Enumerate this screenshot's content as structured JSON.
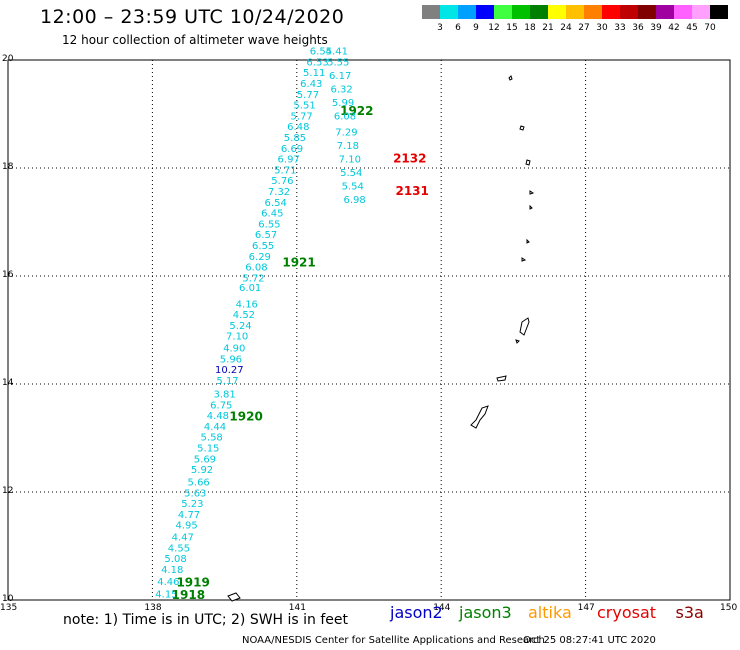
{
  "header": {
    "title": "12:00 – 23:59 UTC 10/24/2020",
    "subtitle": "12 hour collection of altimeter wave heights"
  },
  "scale": {
    "unit": "(ft)",
    "colors": [
      "#808080",
      "#00e5e5",
      "#00a0ff",
      "#0000ff",
      "#40ff40",
      "#00c000",
      "#008000",
      "#ffff00",
      "#ffc000",
      "#ff8000",
      "#ff0000",
      "#c00000",
      "#800000",
      "#a000a0",
      "#ff60ff",
      "#ffa0ff",
      "#000000"
    ],
    "labels": [
      "3",
      "6",
      "9",
      "12",
      "15",
      "18",
      "21",
      "24",
      "27",
      "30",
      "33",
      "36",
      "39",
      "42",
      "45",
      "70"
    ]
  },
  "axes": {
    "lat_ticks": [
      "20",
      "18",
      "16",
      "14",
      "12",
      "10"
    ],
    "lon_ticks": [
      "135",
      "138",
      "141",
      "144",
      "147",
      "150"
    ]
  },
  "tracks": [
    {
      "satellite": "jason3",
      "passes": [
        {
          "label": "1918",
          "lat_lon": [
            10.02,
            138.4
          ]
        },
        {
          "label": "1919",
          "lat_lon": [
            10.25,
            138.5
          ]
        },
        {
          "label": "1920",
          "lat_lon": [
            13.32,
            139.6
          ]
        },
        {
          "label": "1921",
          "lat_lon": [
            16.18,
            140.7
          ]
        },
        {
          "label": "1922",
          "lat_lon": [
            18.98,
            141.9
          ]
        }
      ],
      "readings": [
        {
          "lat": 10.05,
          "lon": 138.06,
          "ft": "4.15",
          "color": "#00c8dc"
        },
        {
          "lat": 10.28,
          "lon": 138.1,
          "ft": "4.46",
          "color": "#00c8dc"
        },
        {
          "lat": 10.5,
          "lon": 138.18,
          "ft": "4.18",
          "color": "#00c8dc"
        },
        {
          "lat": 10.7,
          "lon": 138.25,
          "ft": "5.08",
          "color": "#00c8dc"
        },
        {
          "lat": 10.9,
          "lon": 138.32,
          "ft": "4.55",
          "color": "#00c8dc"
        },
        {
          "lat": 11.1,
          "lon": 138.4,
          "ft": "4.47",
          "color": "#00c8dc"
        },
        {
          "lat": 11.32,
          "lon": 138.48,
          "ft": "4.95",
          "color": "#00c8dc"
        },
        {
          "lat": 11.52,
          "lon": 138.53,
          "ft": "4.77",
          "color": "#00c8dc"
        },
        {
          "lat": 11.72,
          "lon": 138.6,
          "ft": "5.23",
          "color": "#00c8dc"
        },
        {
          "lat": 11.92,
          "lon": 138.66,
          "ft": "5.63",
          "color": "#00c8dc"
        },
        {
          "lat": 12.12,
          "lon": 138.73,
          "ft": "5.66",
          "color": "#00c8dc"
        },
        {
          "lat": 12.35,
          "lon": 138.8,
          "ft": "5.92",
          "color": "#00c8dc"
        },
        {
          "lat": 12.55,
          "lon": 138.86,
          "ft": "5.69",
          "color": "#00c8dc"
        },
        {
          "lat": 12.75,
          "lon": 138.93,
          "ft": "5.15",
          "color": "#00c8dc"
        },
        {
          "lat": 12.95,
          "lon": 139.0,
          "ft": "5.58",
          "color": "#00c8dc"
        },
        {
          "lat": 13.15,
          "lon": 139.07,
          "ft": "4.44",
          "color": "#00c8dc"
        },
        {
          "lat": 13.35,
          "lon": 139.13,
          "ft": "4.48",
          "color": "#00c8dc"
        },
        {
          "lat": 13.55,
          "lon": 139.2,
          "ft": "6.75",
          "color": "#00c8dc"
        },
        {
          "lat": 13.75,
          "lon": 139.27,
          "ft": "3.81",
          "color": "#00c8dc"
        },
        {
          "lat": 14.0,
          "lon": 139.33,
          "ft": "5.17",
          "color": "#00c8dc"
        },
        {
          "lat": 14.2,
          "lon": 139.3,
          "ft": "10.27",
          "color": "#0000b4"
        },
        {
          "lat": 14.4,
          "lon": 139.4,
          "ft": "5.96",
          "color": "#00c8dc"
        },
        {
          "lat": 14.6,
          "lon": 139.47,
          "ft": "4.90",
          "color": "#00c8dc"
        },
        {
          "lat": 14.82,
          "lon": 139.53,
          "ft": "7.10",
          "color": "#00c8dc"
        },
        {
          "lat": 15.02,
          "lon": 139.6,
          "ft": "5.24",
          "color": "#00c8dc"
        },
        {
          "lat": 15.22,
          "lon": 139.67,
          "ft": "4.52",
          "color": "#00c8dc"
        },
        {
          "lat": 15.42,
          "lon": 139.73,
          "ft": "4.16",
          "color": "#00c8dc"
        },
        {
          "lat": 15.72,
          "lon": 139.8,
          "ft": "6.01",
          "color": "#00c8dc"
        },
        {
          "lat": 15.9,
          "lon": 139.87,
          "ft": "5.72",
          "color": "#00c8dc"
        },
        {
          "lat": 16.1,
          "lon": 139.93,
          "ft": "6.08",
          "color": "#00c8dc"
        },
        {
          "lat": 16.3,
          "lon": 140.0,
          "ft": "6.29",
          "color": "#00c8dc"
        },
        {
          "lat": 16.5,
          "lon": 140.07,
          "ft": "6.55",
          "color": "#00c8dc"
        },
        {
          "lat": 16.7,
          "lon": 140.13,
          "ft": "6.57",
          "color": "#00c8dc"
        },
        {
          "lat": 16.9,
          "lon": 140.2,
          "ft": "6.55",
          "color": "#00c8dc"
        },
        {
          "lat": 17.1,
          "lon": 140.26,
          "ft": "6.45",
          "color": "#00c8dc"
        },
        {
          "lat": 17.3,
          "lon": 140.33,
          "ft": "6.54",
          "color": "#00c8dc"
        },
        {
          "lat": 17.5,
          "lon": 140.4,
          "ft": "7.32",
          "color": "#00c8dc"
        },
        {
          "lat": 17.7,
          "lon": 140.47,
          "ft": "5.76",
          "color": "#00c8dc"
        },
        {
          "lat": 17.9,
          "lon": 140.53,
          "ft": "5.71",
          "color": "#00c8dc"
        },
        {
          "lat": 18.1,
          "lon": 140.6,
          "ft": "6.97",
          "color": "#00c8dc"
        },
        {
          "lat": 18.3,
          "lon": 140.67,
          "ft": "6.69",
          "color": "#00c8dc"
        },
        {
          "lat": 18.5,
          "lon": 140.73,
          "ft": "5.85",
          "color": "#00c8dc"
        },
        {
          "lat": 18.7,
          "lon": 140.8,
          "ft": "6.48",
          "color": "#00c8dc"
        },
        {
          "lat": 18.9,
          "lon": 140.87,
          "ft": "5.77",
          "color": "#00c8dc"
        },
        {
          "lat": 19.1,
          "lon": 140.93,
          "ft": "5.51",
          "color": "#00c8dc"
        },
        {
          "lat": 19.3,
          "lon": 141.0,
          "ft": "5.77",
          "color": "#00c8dc"
        },
        {
          "lat": 19.5,
          "lon": 141.07,
          "ft": "6.43",
          "color": "#00c8dc"
        },
        {
          "lat": 19.7,
          "lon": 141.13,
          "ft": "5.11",
          "color": "#00c8dc"
        },
        {
          "lat": 19.9,
          "lon": 141.2,
          "ft": "6.53",
          "color": "#00c8dc"
        },
        {
          "lat": 20.1,
          "lon": 141.27,
          "ft": "6.54",
          "color": "#00c8dc"
        }
      ]
    },
    {
      "satellite": "cryosat",
      "passes": [
        {
          "label": "2131",
          "lat_lon": [
            17.5,
            143.05
          ]
        },
        {
          "label": "2132",
          "lat_lon": [
            18.1,
            143.0
          ]
        }
      ],
      "readings": [
        {
          "lat": 20.1,
          "lon": 141.6,
          "ft": "5.41",
          "color": "#00c8dc"
        },
        {
          "lat": 19.9,
          "lon": 141.63,
          "ft": "5.55",
          "color": "#00c8dc"
        },
        {
          "lat": 19.65,
          "lon": 141.67,
          "ft": "6.17",
          "color": "#00c8dc"
        },
        {
          "lat": 19.4,
          "lon": 141.7,
          "ft": "6.32",
          "color": "#00c8dc"
        },
        {
          "lat": 19.15,
          "lon": 141.73,
          "ft": "5.99",
          "color": "#00c8dc"
        },
        {
          "lat": 18.9,
          "lon": 141.77,
          "ft": "6.08",
          "color": "#00c8dc"
        },
        {
          "lat": 18.6,
          "lon": 141.8,
          "ft": "7.29",
          "color": "#00c8dc"
        },
        {
          "lat": 18.35,
          "lon": 141.83,
          "ft": "7.18",
          "color": "#00c8dc"
        },
        {
          "lat": 18.1,
          "lon": 141.87,
          "ft": "7.10",
          "color": "#00c8dc"
        },
        {
          "lat": 17.85,
          "lon": 141.9,
          "ft": "5.54",
          "color": "#00c8dc"
        },
        {
          "lat": 17.6,
          "lon": 141.93,
          "ft": "5.54",
          "color": "#00c8dc"
        },
        {
          "lat": 17.35,
          "lon": 141.97,
          "ft": "6.98",
          "color": "#00c8dc"
        }
      ]
    }
  ],
  "footer": {
    "note": "note: 1) Time is in UTC; 2) SWH is in feet",
    "satellites": [
      {
        "name": "jason2",
        "color": "#0000c8"
      },
      {
        "name": "jason3",
        "color": "#008000"
      },
      {
        "name": "altika",
        "color": "#ff9900"
      },
      {
        "name": "cryosat",
        "color": "#e60000"
      },
      {
        "name": "s3a",
        "color": "#8b0000"
      }
    ],
    "credit": "NOAA/NESDIS Center for Satellite Applications and Research",
    "timestamp": "Oct 25 08:27:41 UTC 2020"
  }
}
